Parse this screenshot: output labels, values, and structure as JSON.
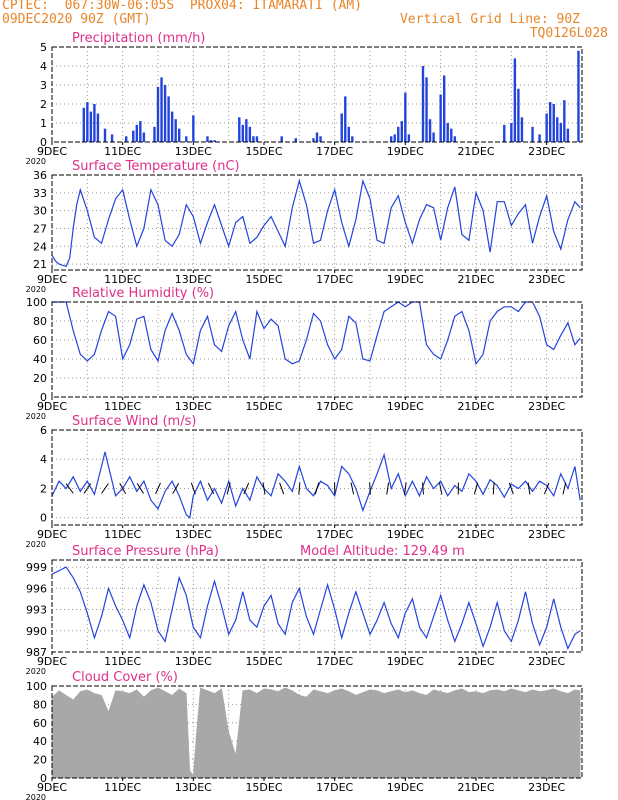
{
  "header": {
    "line1": "CPTEC:  067:30W-06:05S  PROX04: ITAMARATI (AM)",
    "line2_left": "09DEC2020 90Z (GMT)",
    "line2_right": "Vertical Grid Line: 90Z",
    "line3_right": "TQ0126L028"
  },
  "colors": {
    "header": "#e8862a",
    "title": "#e0308a",
    "line": "#2244dd",
    "cloud": "#a8a8a8",
    "grid": "#999999"
  },
  "x_axis": {
    "labels": [
      "9DEC",
      "11DEC",
      "13DEC",
      "15DEC",
      "17DEC",
      "19DEC",
      "21DEC",
      "23DEC"
    ],
    "start_day": 9,
    "days": 15,
    "year_mark": "2020"
  },
  "panels": [
    {
      "id": "precip",
      "title": "Precipitation (mm/h)",
      "type": "bar",
      "ylim": [
        0,
        5
      ],
      "yticks": [
        "0",
        "1",
        "2",
        "3",
        "4",
        "5"
      ]
    },
    {
      "id": "temp",
      "title": "Surface Temperature (nC)",
      "type": "line",
      "ylim": [
        20,
        36
      ],
      "yticks": [
        "21",
        "24",
        "27",
        "30",
        "33",
        "36"
      ]
    },
    {
      "id": "rh",
      "title": "Relative Humidity (%)",
      "type": "line",
      "ylim": [
        0,
        100
      ],
      "yticks": [
        "0",
        "20",
        "40",
        "60",
        "80",
        "100"
      ]
    },
    {
      "id": "wind",
      "title": "Surface Wind (m/s)",
      "type": "line",
      "ylim": [
        -0.5,
        6
      ],
      "yticks": [
        "0",
        "2",
        "4",
        "6"
      ]
    },
    {
      "id": "press",
      "title": "Surface Pressure (hPa)",
      "extra": "Model Altitude: 129.49 m",
      "type": "line",
      "ylim": [
        987,
        1000
      ],
      "yticks": [
        "987",
        "990",
        "993",
        "996",
        "999"
      ]
    },
    {
      "id": "cloud",
      "title": "Cloud Cover (%)",
      "type": "area",
      "ylim": [
        0,
        100
      ],
      "yticks": [
        "0",
        "20",
        "40",
        "60",
        "80",
        "100"
      ]
    }
  ],
  "chart_data": [
    {
      "type": "bar",
      "title": "Precipitation (mm/h)",
      "ylim": [
        0,
        5
      ],
      "x": [
        9.9,
        10.0,
        10.1,
        10.2,
        10.3,
        10.5,
        10.7,
        11.1,
        11.3,
        11.4,
        11.5,
        11.6,
        11.9,
        12.0,
        12.1,
        12.2,
        12.3,
        12.4,
        12.5,
        12.6,
        12.8,
        13.0,
        13.4,
        13.5,
        13.6,
        14.3,
        14.4,
        14.5,
        14.6,
        14.7,
        14.8,
        15.5,
        15.9,
        16.4,
        16.5,
        16.6,
        17.2,
        17.3,
        17.4,
        17.5,
        18.6,
        18.7,
        18.8,
        18.9,
        19.0,
        19.1,
        19.5,
        19.6,
        19.7,
        19.8,
        20.0,
        20.1,
        20.2,
        20.3,
        20.4,
        21.8,
        22.0,
        22.1,
        22.2,
        22.3,
        22.6,
        22.8,
        23.0,
        23.1,
        23.2,
        23.3,
        23.4,
        23.5,
        23.6,
        23.9
      ],
      "values": [
        1.8,
        2.1,
        1.6,
        2.0,
        1.5,
        0.7,
        0.4,
        0.3,
        0.6,
        0.9,
        1.1,
        0.5,
        0.8,
        2.9,
        3.4,
        3.0,
        2.4,
        1.6,
        1.2,
        0.7,
        0.3,
        1.4,
        0.3,
        0.1,
        0.1,
        1.3,
        0.9,
        1.2,
        0.8,
        0.3,
        0.3,
        0.3,
        0.2,
        0.2,
        0.5,
        0.3,
        1.5,
        2.4,
        0.8,
        0.3,
        0.3,
        0.4,
        0.8,
        1.1,
        2.6,
        0.4,
        4.0,
        3.4,
        1.2,
        0.5,
        2.5,
        3.5,
        1.0,
        0.7,
        0.3,
        0.9,
        1.0,
        4.4,
        2.8,
        1.3,
        0.8,
        0.4,
        1.5,
        2.1,
        2.0,
        1.3,
        1.0,
        2.2,
        0.7,
        4.8
      ]
    },
    {
      "type": "line",
      "title": "Surface Temperature (nC)",
      "ylim": [
        20,
        36
      ],
      "x": [
        9.0,
        9.1,
        9.2,
        9.3,
        9.4,
        9.5,
        9.6,
        9.7,
        9.8,
        10.0,
        10.2,
        10.4,
        10.6,
        10.8,
        11.0,
        11.2,
        11.4,
        11.6,
        11.8,
        12.0,
        12.2,
        12.4,
        12.6,
        12.8,
        13.0,
        13.2,
        13.4,
        13.6,
        13.8,
        14.0,
        14.2,
        14.4,
        14.6,
        14.8,
        15.0,
        15.2,
        15.4,
        15.6,
        15.8,
        16.0,
        16.2,
        16.4,
        16.6,
        16.8,
        17.0,
        17.2,
        17.4,
        17.6,
        17.8,
        18.0,
        18.2,
        18.4,
        18.6,
        18.8,
        19.0,
        19.2,
        19.4,
        19.6,
        19.8,
        20.0,
        20.2,
        20.4,
        20.6,
        20.8,
        21.0,
        21.2,
        21.4,
        21.6,
        21.8,
        22.0,
        22.2,
        22.4,
        22.6,
        22.8,
        23.0,
        23.2,
        23.4,
        23.6,
        23.8,
        23.95
      ],
      "values": [
        22.5,
        21.5,
        21.0,
        20.8,
        20.6,
        22.0,
        27.0,
        31.0,
        33.5,
        30.0,
        25.5,
        24.5,
        28.5,
        32.0,
        33.5,
        28.5,
        24.0,
        27.0,
        33.5,
        31.0,
        25.0,
        24.0,
        26.0,
        31.0,
        29.0,
        24.5,
        28.0,
        31.0,
        27.5,
        24.0,
        28.0,
        29.0,
        24.5,
        25.5,
        27.5,
        29.0,
        26.5,
        24.0,
        30.5,
        35.0,
        31.0,
        24.5,
        25.0,
        30.0,
        33.5,
        28.0,
        24.0,
        28.5,
        35.0,
        32.0,
        25.0,
        24.5,
        30.5,
        32.5,
        28.0,
        24.5,
        28.5,
        31.0,
        30.5,
        25.0,
        30.5,
        34.0,
        26.0,
        25.0,
        33.0,
        30.0,
        23.0,
        31.5,
        31.5,
        27.5,
        29.5,
        31.0,
        24.5,
        29.0,
        32.5,
        26.5,
        23.5,
        28.5,
        31.5,
        30.5
      ]
    },
    {
      "type": "line",
      "title": "Relative Humidity (%)",
      "ylim": [
        0,
        100
      ],
      "x": [
        9.0,
        9.2,
        9.4,
        9.6,
        9.8,
        10.0,
        10.2,
        10.4,
        10.6,
        10.8,
        11.0,
        11.2,
        11.4,
        11.6,
        11.8,
        12.0,
        12.2,
        12.4,
        12.6,
        12.8,
        13.0,
        13.2,
        13.4,
        13.6,
        13.8,
        14.0,
        14.2,
        14.4,
        14.6,
        14.8,
        15.0,
        15.2,
        15.4,
        15.6,
        15.8,
        16.0,
        16.2,
        16.4,
        16.6,
        16.8,
        17.0,
        17.2,
        17.4,
        17.6,
        17.8,
        18.0,
        18.2,
        18.4,
        18.6,
        18.8,
        19.0,
        19.2,
        19.4,
        19.6,
        19.8,
        20.0,
        20.2,
        20.4,
        20.6,
        20.8,
        21.0,
        21.2,
        21.4,
        21.6,
        21.8,
        22.0,
        22.2,
        22.4,
        22.6,
        22.8,
        23.0,
        23.2,
        23.4,
        23.6,
        23.8,
        23.95
      ],
      "values": [
        100,
        100,
        100,
        70,
        45,
        38,
        45,
        70,
        90,
        85,
        40,
        55,
        82,
        85,
        50,
        38,
        70,
        88,
        70,
        45,
        35,
        70,
        85,
        55,
        48,
        75,
        90,
        60,
        40,
        90,
        72,
        82,
        75,
        40,
        35,
        38,
        60,
        88,
        80,
        55,
        40,
        50,
        85,
        78,
        40,
        38,
        65,
        90,
        95,
        100,
        95,
        100,
        100,
        55,
        45,
        40,
        60,
        85,
        90,
        70,
        35,
        45,
        80,
        90,
        95,
        95,
        90,
        100,
        100,
        85,
        55,
        50,
        65,
        78,
        55,
        62
      ]
    },
    {
      "type": "line",
      "title": "Surface Wind (m/s)",
      "ylim": [
        -0.5,
        6
      ],
      "x": [
        9.0,
        9.2,
        9.4,
        9.6,
        9.8,
        10.0,
        10.2,
        10.4,
        10.5,
        10.6,
        10.8,
        11.0,
        11.2,
        11.4,
        11.6,
        11.8,
        12.0,
        12.2,
        12.4,
        12.6,
        12.8,
        12.9,
        13.0,
        13.2,
        13.4,
        13.6,
        13.8,
        14.0,
        14.2,
        14.4,
        14.6,
        14.8,
        15.0,
        15.2,
        15.4,
        15.6,
        15.8,
        16.0,
        16.2,
        16.4,
        16.6,
        16.8,
        17.0,
        17.2,
        17.4,
        17.6,
        17.8,
        18.0,
        18.2,
        18.4,
        18.6,
        18.8,
        19.0,
        19.2,
        19.4,
        19.6,
        19.8,
        20.0,
        20.2,
        20.4,
        20.6,
        20.8,
        21.0,
        21.2,
        21.4,
        21.6,
        21.8,
        22.0,
        22.2,
        22.4,
        22.6,
        22.8,
        23.0,
        23.2,
        23.4,
        23.6,
        23.8,
        23.95
      ],
      "values": [
        1.5,
        2.5,
        2.0,
        2.8,
        1.8,
        2.5,
        1.6,
        3.5,
        4.5,
        3.5,
        1.5,
        2.0,
        2.8,
        1.8,
        2.5,
        1.2,
        0.6,
        1.8,
        2.5,
        1.5,
        0.2,
        0.0,
        1.5,
        2.5,
        1.2,
        2.0,
        1.0,
        2.5,
        0.8,
        2.0,
        1.2,
        2.8,
        2.0,
        1.5,
        3.0,
        2.5,
        1.8,
        3.5,
        2.0,
        1.5,
        2.5,
        2.2,
        1.5,
        3.5,
        3.0,
        2.0,
        0.5,
        1.8,
        3.0,
        4.3,
        2.0,
        3.0,
        1.5,
        2.5,
        1.5,
        2.8,
        2.0,
        2.5,
        1.5,
        2.2,
        1.8,
        3.0,
        2.5,
        1.6,
        2.6,
        2.2,
        1.4,
        2.3,
        2.0,
        2.5,
        1.8,
        2.5,
        2.2,
        1.5,
        3.0,
        2.0,
        3.5,
        1.2
      ]
    },
    {
      "type": "line",
      "title": "Surface Pressure (hPa)",
      "ylim": [
        987,
        1000
      ],
      "x": [
        9.0,
        9.2,
        9.4,
        9.6,
        9.8,
        10.0,
        10.2,
        10.4,
        10.6,
        10.8,
        11.0,
        11.2,
        11.4,
        11.6,
        11.8,
        12.0,
        12.2,
        12.4,
        12.6,
        12.8,
        13.0,
        13.2,
        13.4,
        13.6,
        13.8,
        14.0,
        14.2,
        14.4,
        14.6,
        14.8,
        15.0,
        15.2,
        15.4,
        15.6,
        15.8,
        16.0,
        16.2,
        16.4,
        16.6,
        16.8,
        17.0,
        17.2,
        17.4,
        17.6,
        17.8,
        18.0,
        18.2,
        18.4,
        18.6,
        18.8,
        19.0,
        19.2,
        19.4,
        19.6,
        19.8,
        20.0,
        20.2,
        20.4,
        20.6,
        20.8,
        21.0,
        21.2,
        21.4,
        21.6,
        21.8,
        22.0,
        22.2,
        22.4,
        22.6,
        22.8,
        23.0,
        23.2,
        23.4,
        23.6,
        23.8,
        23.95
      ],
      "values": [
        998.0,
        998.5,
        999.0,
        997.5,
        995.5,
        992.5,
        989.0,
        992.0,
        996.0,
        993.5,
        991.5,
        989.0,
        993.5,
        996.5,
        994.0,
        990.0,
        988.5,
        993.0,
        997.5,
        995.0,
        990.5,
        989.0,
        993.5,
        997.0,
        993.5,
        989.5,
        991.5,
        995.5,
        991.5,
        990.5,
        993.5,
        995.0,
        991.0,
        989.5,
        994.0,
        996.0,
        992.0,
        989.5,
        993.0,
        996.5,
        993.0,
        989.0,
        992.5,
        995.5,
        992.5,
        989.5,
        991.5,
        994.0,
        991.0,
        989.0,
        992.5,
        994.5,
        990.5,
        989.0,
        992.0,
        995.0,
        991.5,
        988.5,
        991.0,
        994.0,
        991.0,
        987.8,
        990.5,
        994.0,
        990.0,
        988.5,
        991.5,
        995.5,
        991.0,
        988.0,
        990.5,
        994.5,
        990.5,
        987.5,
        989.5,
        990.0
      ]
    },
    {
      "type": "area",
      "title": "Cloud Cover (%)",
      "ylim": [
        0,
        100
      ],
      "x": [
        9.0,
        9.2,
        9.4,
        9.6,
        9.8,
        10.0,
        10.2,
        10.4,
        10.6,
        10.8,
        11.0,
        11.2,
        11.4,
        11.6,
        11.8,
        12.0,
        12.2,
        12.4,
        12.6,
        12.8,
        12.9,
        13.0,
        13.1,
        13.2,
        13.4,
        13.6,
        13.8,
        14.0,
        14.2,
        14.4,
        14.6,
        14.8,
        15.0,
        15.2,
        15.4,
        15.6,
        15.8,
        16.0,
        16.2,
        16.4,
        16.6,
        16.8,
        17.0,
        17.2,
        17.4,
        17.6,
        17.8,
        18.0,
        18.2,
        18.4,
        18.6,
        18.8,
        19.0,
        19.2,
        19.4,
        19.6,
        19.8,
        20.0,
        20.2,
        20.4,
        20.6,
        20.8,
        21.0,
        21.2,
        21.4,
        21.6,
        21.8,
        22.0,
        22.2,
        22.4,
        22.6,
        22.8,
        23.0,
        23.2,
        23.4,
        23.6,
        23.8,
        23.95
      ],
      "values": [
        88,
        95,
        90,
        85,
        94,
        96,
        92,
        90,
        72,
        95,
        94,
        92,
        96,
        88,
        95,
        98,
        94,
        90,
        97,
        92,
        8,
        3,
        55,
        98,
        95,
        92,
        97,
        50,
        25,
        95,
        96,
        92,
        97,
        96,
        94,
        98,
        95,
        90,
        88,
        96,
        94,
        92,
        95,
        97,
        94,
        90,
        93,
        96,
        95,
        92,
        94,
        96,
        93,
        95,
        92,
        90,
        96,
        94,
        92,
        95,
        97,
        93,
        94,
        92,
        95,
        96,
        94,
        97,
        95,
        93,
        96,
        94,
        95,
        97,
        94,
        92,
        96,
        95
      ]
    }
  ]
}
